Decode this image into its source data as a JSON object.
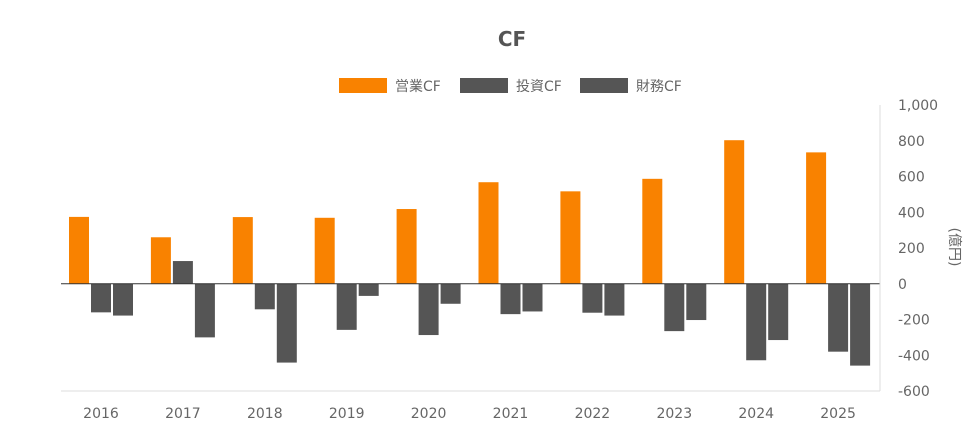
{
  "chart_data": {
    "type": "bar",
    "title": "CF",
    "ylabel": "(億円)",
    "categories": [
      "2016",
      "2017",
      "2018",
      "2019",
      "2020",
      "2021",
      "2022",
      "2023",
      "2024",
      "2025"
    ],
    "series": [
      {
        "name": "営業CF",
        "color": "#f98200",
        "values": [
          374,
          260,
          373,
          369,
          418,
          568,
          517,
          587,
          803,
          735
        ]
      },
      {
        "name": "投資CF",
        "color": "#555555",
        "values": [
          -160,
          127,
          -143,
          -258,
          -287,
          -170,
          -162,
          -265,
          -428,
          -380
        ]
      },
      {
        "name": "財務CF",
        "color": "#555555",
        "values": [
          -178,
          -300,
          -441,
          -68,
          -112,
          -155,
          -178,
          -203,
          -315,
          -458
        ]
      }
    ],
    "y_ticks": [
      "1,000",
      "800",
      "600",
      "400",
      "200",
      "0",
      "-200",
      "-400",
      "-600"
    ],
    "ylim": [
      -600,
      1000
    ],
    "grid": false,
    "legend_position": "top-center"
  }
}
